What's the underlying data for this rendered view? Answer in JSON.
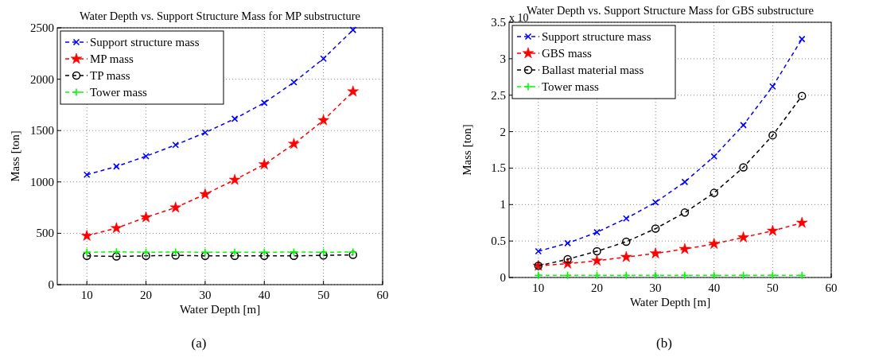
{
  "chart_data": [
    {
      "type": "line",
      "title": "Water Depth vs. Support Structure Mass for MP substructure",
      "xlabel": "Water Depth [m]",
      "ylabel": "Mass [ton]",
      "annotations": [
        "(a)"
      ],
      "x": [
        10,
        15,
        20,
        25,
        30,
        35,
        40,
        45,
        50,
        55
      ],
      "xlim": [
        5,
        60
      ],
      "xticks": [
        10,
        20,
        30,
        40,
        50,
        60
      ],
      "ylim": [
        0,
        2500
      ],
      "yticks": [
        0,
        500,
        1000,
        1500,
        2000,
        2500
      ],
      "grid": true,
      "legend": "top left",
      "line_style": "dashed",
      "series": [
        {
          "name": "Support structure mass",
          "color": "#0000ff",
          "marker": "cross",
          "values": [
            1070,
            1150,
            1250,
            1360,
            1480,
            1615,
            1770,
            1970,
            2200,
            2480
          ]
        },
        {
          "name": "MP mass",
          "color": "#ff0000",
          "marker": "star",
          "values": [
            475,
            550,
            655,
            750,
            880,
            1020,
            1170,
            1370,
            1600,
            1880
          ]
        },
        {
          "name": "TP mass",
          "color": "#000000",
          "marker": "circle",
          "values": [
            280,
            275,
            280,
            285,
            280,
            280,
            280,
            280,
            285,
            290
          ]
        },
        {
          "name": "Tower mass",
          "color": "#00ff00",
          "marker": "plus",
          "values": [
            315,
            320,
            315,
            318,
            315,
            315,
            315,
            318,
            315,
            318
          ]
        }
      ]
    },
    {
      "type": "line",
      "title": "Water Depth vs. Support Structure Mass for GBS substructure",
      "xlabel": "Water Depth [m]",
      "ylabel": "Mass [ton]",
      "annotations": [
        "x 10",
        "(b)"
      ],
      "x": [
        10,
        15,
        20,
        25,
        30,
        35,
        40,
        45,
        50,
        55
      ],
      "xlim": [
        5,
        60
      ],
      "xticks": [
        10,
        20,
        30,
        40,
        50,
        60
      ],
      "ylim": [
        0,
        3.5
      ],
      "yticks": [
        0,
        0.5,
        1,
        1.5,
        2,
        2.5,
        3,
        3.5
      ],
      "grid": true,
      "legend": "top left",
      "line_style": "dashed",
      "series": [
        {
          "name": "Support structure mass",
          "color": "#0000ff",
          "marker": "cross",
          "values": [
            0.36,
            0.47,
            0.62,
            0.81,
            1.03,
            1.31,
            1.66,
            2.09,
            2.62,
            3.27
          ]
        },
        {
          "name": "GBS mass",
          "color": "#ff0000",
          "marker": "star",
          "values": [
            0.16,
            0.19,
            0.23,
            0.28,
            0.33,
            0.39,
            0.46,
            0.55,
            0.64,
            0.75
          ]
        },
        {
          "name": "Ballast material mass",
          "color": "#000000",
          "marker": "circle",
          "values": [
            0.16,
            0.25,
            0.36,
            0.49,
            0.67,
            0.89,
            1.16,
            1.51,
            1.95,
            2.49
          ]
        },
        {
          "name": "Tower mass",
          "color": "#00ff00",
          "marker": "plus",
          "values": [
            0.03,
            0.03,
            0.03,
            0.03,
            0.03,
            0.03,
            0.03,
            0.03,
            0.03,
            0.03
          ]
        }
      ]
    }
  ]
}
